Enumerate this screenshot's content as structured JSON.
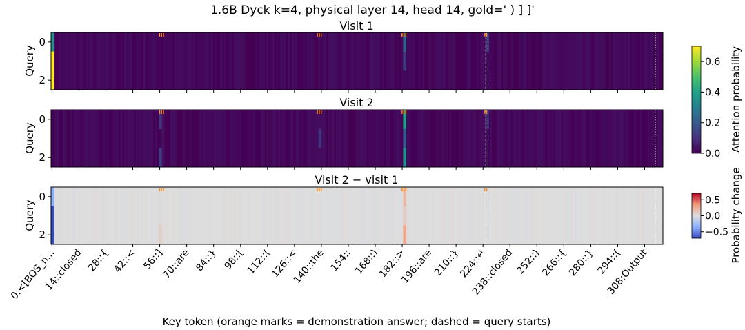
{
  "title": "1.6B Dyck k=4, physical layer 14, head 14, gold=' ) ] ]'",
  "xlabel": "Key token (orange marks = demonstration answer; dashed = query starts)",
  "colors": {
    "viridis_low": "#440154",
    "diverging_pos": "#e8795a",
    "diverging_neg": "#3b4cc0",
    "neutral": "#dddddd",
    "demo_mark": "#ff8c1a"
  },
  "chart_data": [
    {
      "type": "heatmap",
      "title": "Visit 1",
      "ylabel": "Query",
      "rows": 3,
      "keys": 318,
      "yticks": [
        0,
        2
      ],
      "colormap": "viridis",
      "range": [
        0,
        0.7
      ],
      "hotspots": [
        {
          "key": 0,
          "query": 0,
          "value": 0.35
        },
        {
          "key": 0,
          "query": 1,
          "value": 0.72
        },
        {
          "key": 0,
          "query": 2,
          "value": 0.72
        },
        {
          "key": 183,
          "query": 0,
          "value": 0.22
        },
        {
          "key": 183,
          "query": 1,
          "value": 0.12
        },
        {
          "key": 226,
          "query": 0,
          "value": 0.12
        }
      ]
    },
    {
      "type": "heatmap",
      "title": "Visit 2",
      "ylabel": "Query",
      "rows": 3,
      "keys": 318,
      "yticks": [
        0,
        2
      ],
      "colormap": "viridis",
      "range": [
        0,
        0.7
      ],
      "hotspots": [
        {
          "key": 183,
          "query": 0,
          "value": 0.4
        },
        {
          "key": 183,
          "query": 1,
          "value": 0.2
        },
        {
          "key": 183,
          "query": 2,
          "value": 0.35
        },
        {
          "key": 56,
          "query": 0,
          "value": 0.1
        },
        {
          "key": 56,
          "query": 2,
          "value": 0.12
        },
        {
          "key": 139,
          "query": 1,
          "value": 0.1
        },
        {
          "key": 226,
          "query": 0,
          "value": 0.1
        }
      ]
    },
    {
      "type": "heatmap",
      "title": "Visit 2 − visit 1",
      "ylabel": "Query",
      "rows": 3,
      "keys": 318,
      "yticks": [
        0,
        2
      ],
      "colormap": "coolwarm",
      "range": [
        -0.7,
        0.7
      ],
      "hotspots": [
        {
          "key": 0,
          "query": 0,
          "value": -0.35
        },
        {
          "key": 0,
          "query": 1,
          "value": -0.72
        },
        {
          "key": 0,
          "query": 2,
          "value": -0.72
        },
        {
          "key": 183,
          "query": 0,
          "value": 0.2
        },
        {
          "key": 183,
          "query": 1,
          "value": 0.1
        },
        {
          "key": 183,
          "query": 2,
          "value": 0.3
        },
        {
          "key": 56,
          "query": 2,
          "value": 0.08
        }
      ]
    }
  ],
  "colorbars": [
    {
      "label": "Attention probability",
      "ticks": [
        "0.0",
        "0.2",
        "0.4",
        "0.6"
      ],
      "values": [
        0,
        0.2,
        0.4,
        0.6
      ],
      "range": [
        0,
        0.7
      ]
    },
    {
      "label": "Probability change",
      "ticks": [
        "0.5",
        "0.0",
        "−0.5"
      ],
      "values": [
        0.5,
        0,
        -0.5
      ],
      "range": [
        -0.7,
        0.7
      ]
    }
  ],
  "x_ticks": [
    {
      "key": 0,
      "label": "0:<[BOS_n..."
    },
    {
      "key": 14,
      "label": "14::closed"
    },
    {
      "key": 28,
      "label": "28::{"
    },
    {
      "key": 42,
      "label": "42::<"
    },
    {
      "key": 56,
      "label": "56::]"
    },
    {
      "key": 70,
      "label": "70::are"
    },
    {
      "key": 84,
      "label": "84::}"
    },
    {
      "key": 98,
      "label": "98::["
    },
    {
      "key": 112,
      "label": "112::("
    },
    {
      "key": 126,
      "label": "126::<"
    },
    {
      "key": 140,
      "label": "140::the"
    },
    {
      "key": 154,
      "label": "154::"
    },
    {
      "key": 168,
      "label": "168::)"
    },
    {
      "key": 182,
      "label": "182::>"
    },
    {
      "key": 196,
      "label": "196::are"
    },
    {
      "key": 210,
      "label": "210::}"
    },
    {
      "key": 224,
      "label": "224::↵"
    },
    {
      "key": 238,
      "label": "238::closed"
    },
    {
      "key": 252,
      "label": "252::)"
    },
    {
      "key": 266,
      "label": "266::{"
    },
    {
      "key": 280,
      "label": "280::}"
    },
    {
      "key": 294,
      "label": "294::("
    },
    {
      "key": 308,
      "label": "308:Output"
    }
  ],
  "demo_marks": [
    56,
    57,
    58,
    138,
    139,
    140,
    182,
    183,
    184,
    225,
    226
  ],
  "query_starts": [
    226,
    314
  ]
}
